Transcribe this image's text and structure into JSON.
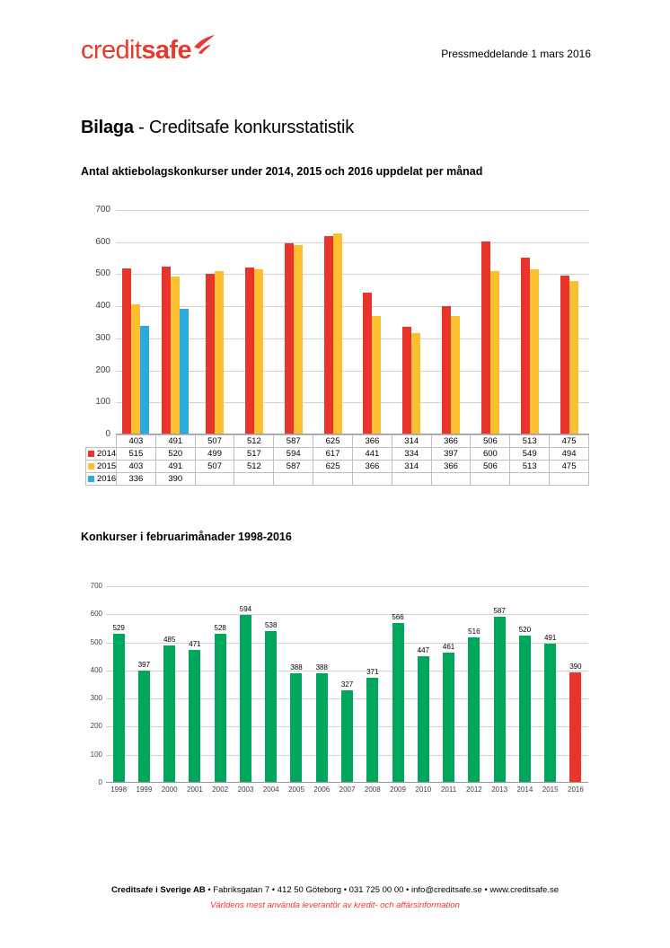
{
  "header": {
    "logo_credit": "credit",
    "logo_safe": "safe",
    "press_label": "Pressmeddelande 1 mars 2016"
  },
  "title": {
    "bold": "Bilaga",
    "rest": " - Creditsafe konkursstatistik"
  },
  "sections": {
    "monthly_heading": "Antal aktiebolagskonkurser under 2014, 2015 och 2016 uppdelat per månad",
    "february_heading": "Konkurser i februarimånader 1998-2016"
  },
  "footer": {
    "company": "Creditsafe i Sverige AB",
    "details": " • Fabriksgatan 7 • 412 50 Göteborg • 031 725 00 00 • info@creditsafe.se • www.creditsafe.se",
    "tagline": "Världens mest använda leverantör av kredit- och affärsinformation"
  },
  "colors": {
    "brand_red": "#e63a2e",
    "series_2014": "#e8342b",
    "series_2015": "#fcbf2f",
    "series_2016": "#2ba9e0",
    "bar_green": "#00a65c",
    "bar_red_highlight": "#e8342b",
    "gridline": "#d2d2d2",
    "axis": "#9a9a9a"
  },
  "chart_data": [
    {
      "type": "bar",
      "title": "Antal aktiebolagskonkurser under 2014, 2015 och 2016 uppdelat per månad",
      "categories": [
        "403",
        "491",
        "507",
        "512",
        "587",
        "625",
        "366",
        "314",
        "366",
        "506",
        "513",
        "475"
      ],
      "series": [
        {
          "name": "2014",
          "color_key": "series_2014",
          "values": [
            515,
            520,
            499,
            517,
            594,
            617,
            441,
            334,
            397,
            600,
            549,
            494
          ]
        },
        {
          "name": "2015",
          "color_key": "series_2015",
          "values": [
            403,
            491,
            507,
            512,
            587,
            625,
            366,
            314,
            366,
            506,
            513,
            475
          ]
        },
        {
          "name": "2016",
          "color_key": "series_2016",
          "values": [
            336,
            390,
            null,
            null,
            null,
            null,
            null,
            null,
            null,
            null,
            null,
            null
          ]
        }
      ],
      "ylim": [
        0,
        700
      ],
      "ytick_step": 100,
      "grid": true,
      "legend_position": "data-table-left",
      "data_table": true
    },
    {
      "type": "bar",
      "title": "Konkurser i februarimånader 1998-2016",
      "categories": [
        "1998",
        "1999",
        "2000",
        "2001",
        "2002",
        "2003",
        "2004",
        "2005",
        "2006",
        "2007",
        "2008",
        "2009",
        "2010",
        "2011",
        "2012",
        "2013",
        "2014",
        "2015",
        "2016"
      ],
      "values": [
        529,
        397,
        485,
        471,
        528,
        594,
        538,
        388,
        388,
        327,
        371,
        566,
        447,
        461,
        516,
        587,
        520,
        491,
        390
      ],
      "default_color_key": "bar_green",
      "highlight_index": 18,
      "highlight_color_key": "bar_red_highlight",
      "ylim": [
        0,
        700
      ],
      "ytick_step": 100,
      "grid": true,
      "data_labels": true,
      "legend_position": "none"
    }
  ]
}
